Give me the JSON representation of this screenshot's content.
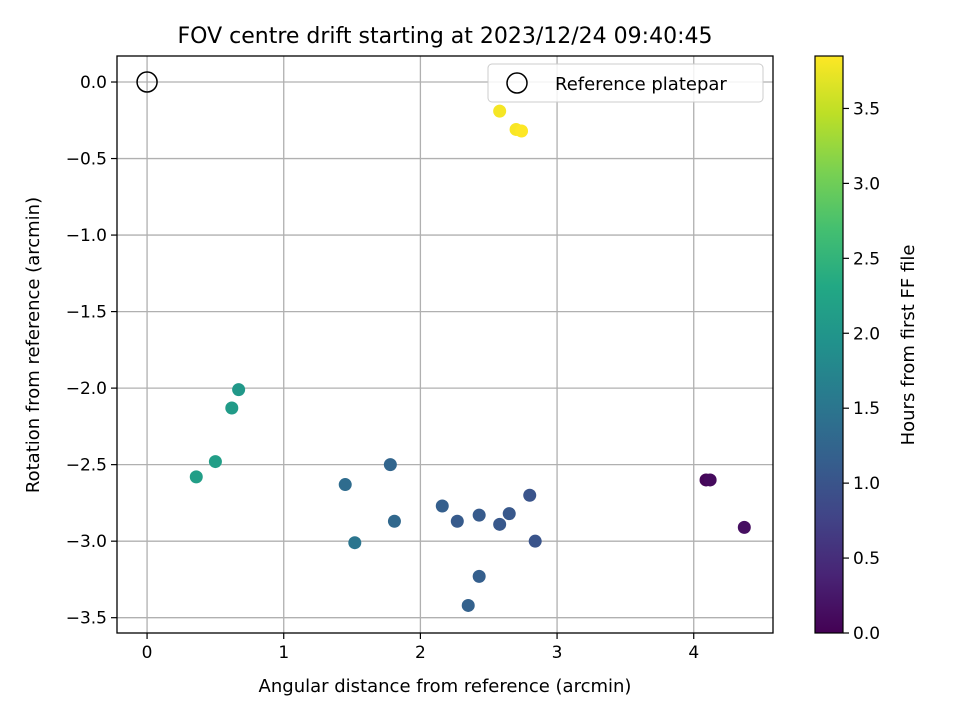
{
  "chart_data": {
    "type": "scatter",
    "title": "FOV centre drift starting at 2023/12/24 09:40:45",
    "xlabel": "Angular distance from reference (arcmin)",
    "ylabel": "Rotation from reference (arcmin)",
    "xlim": [
      -0.22,
      4.58
    ],
    "ylim": [
      -3.6,
      0.17
    ],
    "xticks": [
      0,
      1,
      2,
      3,
      4
    ],
    "yticks": [
      0.0,
      -0.5,
      -1.0,
      -1.5,
      -2.0,
      -2.5,
      -3.0,
      -3.5
    ],
    "grid": true,
    "legend": {
      "placement": "top-right",
      "entries": [
        "Reference platepar"
      ]
    },
    "reference_point": {
      "x": 0.0,
      "y": 0.0,
      "label": "Reference platepar"
    },
    "colorbar": {
      "label": "Hours from first FF file",
      "colormap": "viridis",
      "range": [
        0.0,
        3.85
      ],
      "ticks": [
        0.0,
        0.5,
        1.0,
        1.5,
        2.0,
        2.5,
        3.0,
        3.5
      ]
    },
    "series": [
      {
        "points": [
          {
            "x": 4.09,
            "y": -2.6,
            "c": 0.05
          },
          {
            "x": 4.12,
            "y": -2.6,
            "c": 0.1
          },
          {
            "x": 4.37,
            "y": -2.91,
            "c": 0.15
          },
          {
            "x": 2.8,
            "y": -2.7,
            "c": 1.0
          },
          {
            "x": 2.84,
            "y": -3.0,
            "c": 1.0
          },
          {
            "x": 2.65,
            "y": -2.82,
            "c": 1.05
          },
          {
            "x": 2.58,
            "y": -2.89,
            "c": 1.05
          },
          {
            "x": 2.43,
            "y": -2.83,
            "c": 1.1
          },
          {
            "x": 2.27,
            "y": -2.87,
            "c": 1.1
          },
          {
            "x": 2.16,
            "y": -2.77,
            "c": 1.15
          },
          {
            "x": 2.43,
            "y": -3.23,
            "c": 1.15
          },
          {
            "x": 2.35,
            "y": -3.42,
            "c": 1.2
          },
          {
            "x": 1.78,
            "y": -2.5,
            "c": 1.25
          },
          {
            "x": 1.81,
            "y": -2.87,
            "c": 1.3
          },
          {
            "x": 1.45,
            "y": -2.63,
            "c": 1.35
          },
          {
            "x": 1.52,
            "y": -3.01,
            "c": 1.5
          },
          {
            "x": 0.67,
            "y": -2.01,
            "c": 2.05
          },
          {
            "x": 0.62,
            "y": -2.13,
            "c": 2.1
          },
          {
            "x": 0.5,
            "y": -2.48,
            "c": 2.15
          },
          {
            "x": 0.36,
            "y": -2.58,
            "c": 2.15
          },
          {
            "x": 2.58,
            "y": -0.19,
            "c": 3.8
          },
          {
            "x": 2.7,
            "y": -0.31,
            "c": 3.82
          },
          {
            "x": 2.74,
            "y": -0.32,
            "c": 3.85
          }
        ]
      }
    ]
  }
}
